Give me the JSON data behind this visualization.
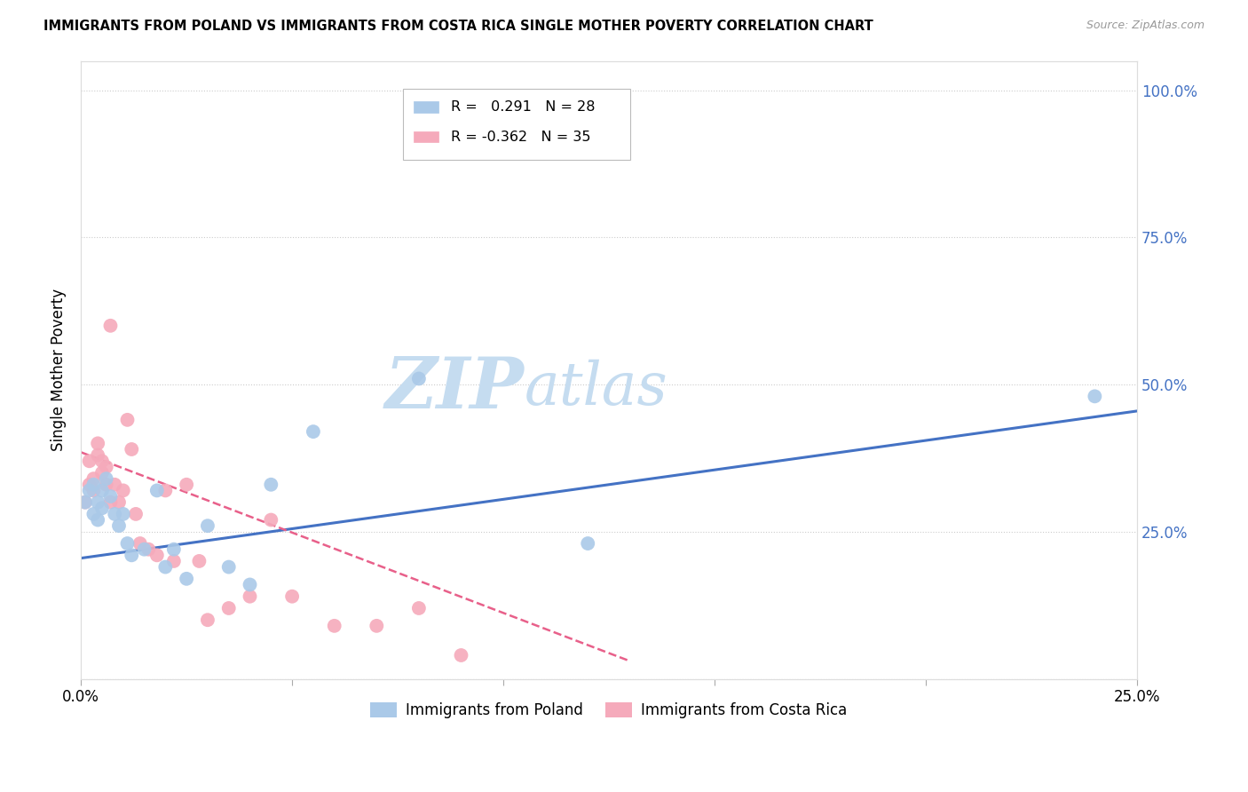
{
  "title": "IMMIGRANTS FROM POLAND VS IMMIGRANTS FROM COSTA RICA SINGLE MOTHER POVERTY CORRELATION CHART",
  "source": "Source: ZipAtlas.com",
  "ylabel": "Single Mother Poverty",
  "xlim": [
    0.0,
    0.25
  ],
  "ylim": [
    0.0,
    1.05
  ],
  "xticks": [
    0.0,
    0.05,
    0.1,
    0.15,
    0.2,
    0.25
  ],
  "yticks": [
    0.0,
    0.25,
    0.5,
    0.75,
    1.0
  ],
  "xtick_labels": [
    "0.0%",
    "",
    "",
    "",
    "",
    "25.0%"
  ],
  "ytick_labels_right": [
    "",
    "25.0%",
    "50.0%",
    "75.0%",
    "100.0%"
  ],
  "poland_color": "#aac9e8",
  "costa_rica_color": "#f5aabb",
  "poland_line_color": "#4472c4",
  "costa_rica_line_color": "#e8608a",
  "watermark_zip": "ZIP",
  "watermark_atlas": "atlas",
  "watermark_color": "#c5dcf0",
  "legend_r_poland": " 0.291",
  "legend_n_poland": "28",
  "legend_r_costa_rica": "-0.362",
  "legend_n_costa_rica": "35",
  "poland_x": [
    0.001,
    0.002,
    0.003,
    0.003,
    0.004,
    0.004,
    0.005,
    0.005,
    0.006,
    0.007,
    0.008,
    0.009,
    0.01,
    0.011,
    0.012,
    0.015,
    0.018,
    0.02,
    0.022,
    0.025,
    0.03,
    0.035,
    0.04,
    0.045,
    0.055,
    0.08,
    0.12,
    0.24
  ],
  "poland_y": [
    0.3,
    0.32,
    0.28,
    0.33,
    0.3,
    0.27,
    0.32,
    0.29,
    0.34,
    0.31,
    0.28,
    0.26,
    0.28,
    0.23,
    0.21,
    0.22,
    0.32,
    0.19,
    0.22,
    0.17,
    0.26,
    0.19,
    0.16,
    0.33,
    0.42,
    0.51,
    0.23,
    0.48
  ],
  "costa_rica_x": [
    0.001,
    0.002,
    0.002,
    0.003,
    0.003,
    0.004,
    0.004,
    0.005,
    0.005,
    0.006,
    0.006,
    0.007,
    0.007,
    0.008,
    0.009,
    0.01,
    0.011,
    0.012,
    0.013,
    0.014,
    0.016,
    0.018,
    0.02,
    0.022,
    0.025,
    0.028,
    0.03,
    0.035,
    0.04,
    0.045,
    0.05,
    0.06,
    0.07,
    0.08,
    0.09
  ],
  "costa_rica_y": [
    0.3,
    0.33,
    0.37,
    0.34,
    0.32,
    0.4,
    0.38,
    0.37,
    0.35,
    0.36,
    0.33,
    0.3,
    0.6,
    0.33,
    0.3,
    0.32,
    0.44,
    0.39,
    0.28,
    0.23,
    0.22,
    0.21,
    0.32,
    0.2,
    0.33,
    0.2,
    0.1,
    0.12,
    0.14,
    0.27,
    0.14,
    0.09,
    0.09,
    0.12,
    0.04
  ],
  "poland_trend_x": [
    0.0,
    0.25
  ],
  "poland_trend_y": [
    0.205,
    0.455
  ],
  "costa_rica_trend_x": [
    0.0,
    0.13
  ],
  "costa_rica_trend_y": [
    0.385,
    0.03
  ]
}
